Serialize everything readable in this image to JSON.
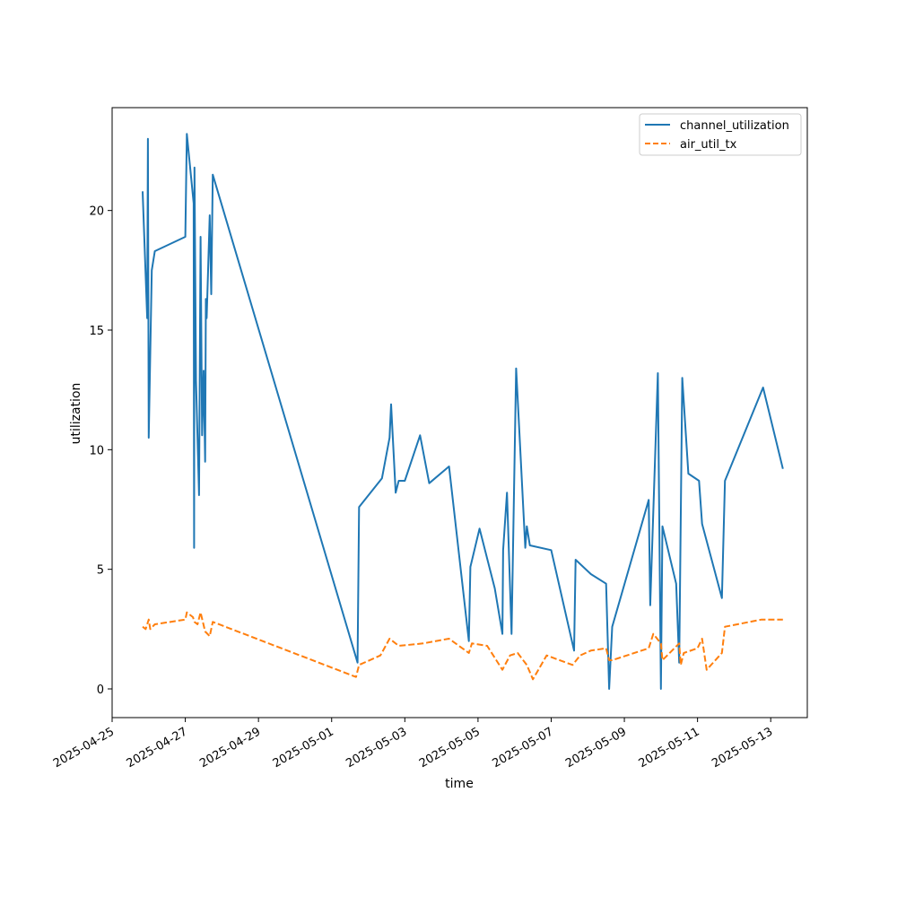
{
  "chart_data": {
    "type": "line",
    "xlabel": "time",
    "ylabel": "utilization",
    "xlim": [
      "2025-04-25 00:00",
      "2025-05-14 00:00"
    ],
    "ylim": [
      -1.2,
      24.3
    ],
    "grid": false,
    "legend_position": "top-right",
    "x_tick_labels": [
      "2025-04-25",
      "2025-04-27",
      "2025-04-29",
      "2025-05-01",
      "2025-05-03",
      "2025-05-05",
      "2025-05-07",
      "2025-05-09",
      "2025-05-11",
      "2025-05-13"
    ],
    "y_ticks": [
      0,
      5,
      10,
      15,
      20
    ],
    "series": [
      {
        "name": "channel_utilization",
        "color": "#1f77b4",
        "style": "solid",
        "points": [
          [
            "2025-04-25 20:00",
            20.8
          ],
          [
            "2025-04-25 23:00",
            15.5
          ],
          [
            "2025-04-25 23:30",
            23.0
          ],
          [
            "2025-04-26 00:00",
            10.5
          ],
          [
            "2025-04-26 02:00",
            17.5
          ],
          [
            "2025-04-26 04:00",
            18.3
          ],
          [
            "2025-04-27 00:00",
            18.9
          ],
          [
            "2025-04-27 01:00",
            23.2
          ],
          [
            "2025-04-27 05:30",
            20.3
          ],
          [
            "2025-04-27 05:45",
            5.9
          ],
          [
            "2025-04-27 06:00",
            21.8
          ],
          [
            "2025-04-27 07:00",
            12.9
          ],
          [
            "2025-04-27 09:00",
            8.1
          ],
          [
            "2025-04-27 10:00",
            18.9
          ],
          [
            "2025-04-27 11:00",
            10.6
          ],
          [
            "2025-04-27 12:00",
            13.3
          ],
          [
            "2025-04-27 13:00",
            9.5
          ],
          [
            "2025-04-27 13:30",
            16.3
          ],
          [
            "2025-04-27 14:00",
            15.5
          ],
          [
            "2025-04-27 16:00",
            19.8
          ],
          [
            "2025-04-27 17:00",
            16.5
          ],
          [
            "2025-04-27 18:00",
            21.5
          ],
          [
            "2025-05-01 17:00",
            1.1
          ],
          [
            "2025-05-01 18:00",
            7.6
          ],
          [
            "2025-05-02 09:00",
            8.8
          ],
          [
            "2025-05-02 14:00",
            10.5
          ],
          [
            "2025-05-02 15:00",
            11.9
          ],
          [
            "2025-05-02 18:00",
            8.2
          ],
          [
            "2025-05-02 20:00",
            8.7
          ],
          [
            "2025-05-03 00:00",
            8.7
          ],
          [
            "2025-05-03 10:00",
            10.6
          ],
          [
            "2025-05-03 16:00",
            8.6
          ],
          [
            "2025-05-04 05:00",
            9.3
          ],
          [
            "2025-05-04 18:00",
            2.0
          ],
          [
            "2025-05-04 19:00",
            5.1
          ],
          [
            "2025-05-05 01:00",
            6.7
          ],
          [
            "2025-05-05 11:00",
            4.2
          ],
          [
            "2025-05-05 16:00",
            2.3
          ],
          [
            "2025-05-05 16:30",
            5.8
          ],
          [
            "2025-05-05 19:00",
            8.2
          ],
          [
            "2025-05-05 22:00",
            2.3
          ],
          [
            "2025-05-06 01:00",
            13.4
          ],
          [
            "2025-05-06 07:00",
            5.9
          ],
          [
            "2025-05-06 08:00",
            6.8
          ],
          [
            "2025-05-06 10:00",
            6.0
          ],
          [
            "2025-05-07 00:00",
            5.8
          ],
          [
            "2025-05-07 15:00",
            1.6
          ],
          [
            "2025-05-07 16:00",
            5.4
          ],
          [
            "2025-05-08 02:00",
            4.8
          ],
          [
            "2025-05-08 12:00",
            4.4
          ],
          [
            "2025-05-08 13:00",
            2.2
          ],
          [
            "2025-05-08 14:00",
            0.0
          ],
          [
            "2025-05-08 16:00",
            2.6
          ],
          [
            "2025-05-09 16:00",
            7.9
          ],
          [
            "2025-05-09 17:00",
            3.5
          ],
          [
            "2025-05-09 22:00",
            13.2
          ],
          [
            "2025-05-10 00:00",
            0.0
          ],
          [
            "2025-05-10 01:00",
            6.8
          ],
          [
            "2025-05-10 10:00",
            4.4
          ],
          [
            "2025-05-10 12:00",
            1.1
          ],
          [
            "2025-05-10 14:00",
            13.0
          ],
          [
            "2025-05-10 18:00",
            9.0
          ],
          [
            "2025-05-11 01:00",
            8.7
          ],
          [
            "2025-05-11 03:00",
            6.9
          ],
          [
            "2025-05-11 16:00",
            3.8
          ],
          [
            "2025-05-11 18:00",
            8.7
          ],
          [
            "2025-05-12 19:00",
            12.6
          ],
          [
            "2025-05-13 08:00",
            9.2
          ]
        ]
      },
      {
        "name": "air_util_tx",
        "color": "#ff7f0e",
        "style": "dashed",
        "points": [
          [
            "2025-04-25 20:00",
            2.6
          ],
          [
            "2025-04-25 22:00",
            2.5
          ],
          [
            "2025-04-26 00:00",
            2.9
          ],
          [
            "2025-04-26 01:00",
            2.5
          ],
          [
            "2025-04-26 04:00",
            2.7
          ],
          [
            "2025-04-27 00:00",
            2.9
          ],
          [
            "2025-04-27 01:00",
            3.2
          ],
          [
            "2025-04-27 05:00",
            3.0
          ],
          [
            "2025-04-27 06:00",
            2.8
          ],
          [
            "2025-04-27 08:00",
            2.7
          ],
          [
            "2025-04-27 10:00",
            3.2
          ],
          [
            "2025-04-27 13:00",
            2.4
          ],
          [
            "2025-04-27 16:00",
            2.2
          ],
          [
            "2025-04-27 18:00",
            2.8
          ],
          [
            "2025-05-01 16:00",
            0.5
          ],
          [
            "2025-05-01 18:00",
            1.0
          ],
          [
            "2025-05-02 08:00",
            1.4
          ],
          [
            "2025-05-02 14:00",
            2.1
          ],
          [
            "2025-05-02 20:00",
            1.8
          ],
          [
            "2025-05-03 12:00",
            1.9
          ],
          [
            "2025-05-04 05:00",
            2.1
          ],
          [
            "2025-05-04 18:00",
            1.5
          ],
          [
            "2025-05-04 20:00",
            1.9
          ],
          [
            "2025-05-05 06:00",
            1.8
          ],
          [
            "2025-05-05 16:00",
            0.8
          ],
          [
            "2025-05-05 21:00",
            1.4
          ],
          [
            "2025-05-06 02:00",
            1.5
          ],
          [
            "2025-05-06 08:00",
            1.0
          ],
          [
            "2025-05-06 12:00",
            0.4
          ],
          [
            "2025-05-06 21:00",
            1.4
          ],
          [
            "2025-05-07 14:00",
            1.0
          ],
          [
            "2025-05-07 19:00",
            1.4
          ],
          [
            "2025-05-08 02:00",
            1.6
          ],
          [
            "2025-05-08 12:00",
            1.7
          ],
          [
            "2025-05-08 14:00",
            1.2
          ],
          [
            "2025-05-08 16:00",
            1.2
          ],
          [
            "2025-05-09 16:00",
            1.7
          ],
          [
            "2025-05-09 19:00",
            2.3
          ],
          [
            "2025-05-10 00:00",
            1.9
          ],
          [
            "2025-05-10 01:00",
            1.2
          ],
          [
            "2025-05-10 12:00",
            1.9
          ],
          [
            "2025-05-10 13:00",
            1.0
          ],
          [
            "2025-05-10 15:00",
            1.5
          ],
          [
            "2025-05-11 00:00",
            1.7
          ],
          [
            "2025-05-11 03:00",
            2.1
          ],
          [
            "2025-05-11 06:00",
            0.8
          ],
          [
            "2025-05-11 16:00",
            1.5
          ],
          [
            "2025-05-11 18:00",
            2.6
          ],
          [
            "2025-05-12 18:00",
            2.9
          ],
          [
            "2025-05-13 08:00",
            2.9
          ]
        ]
      }
    ]
  }
}
